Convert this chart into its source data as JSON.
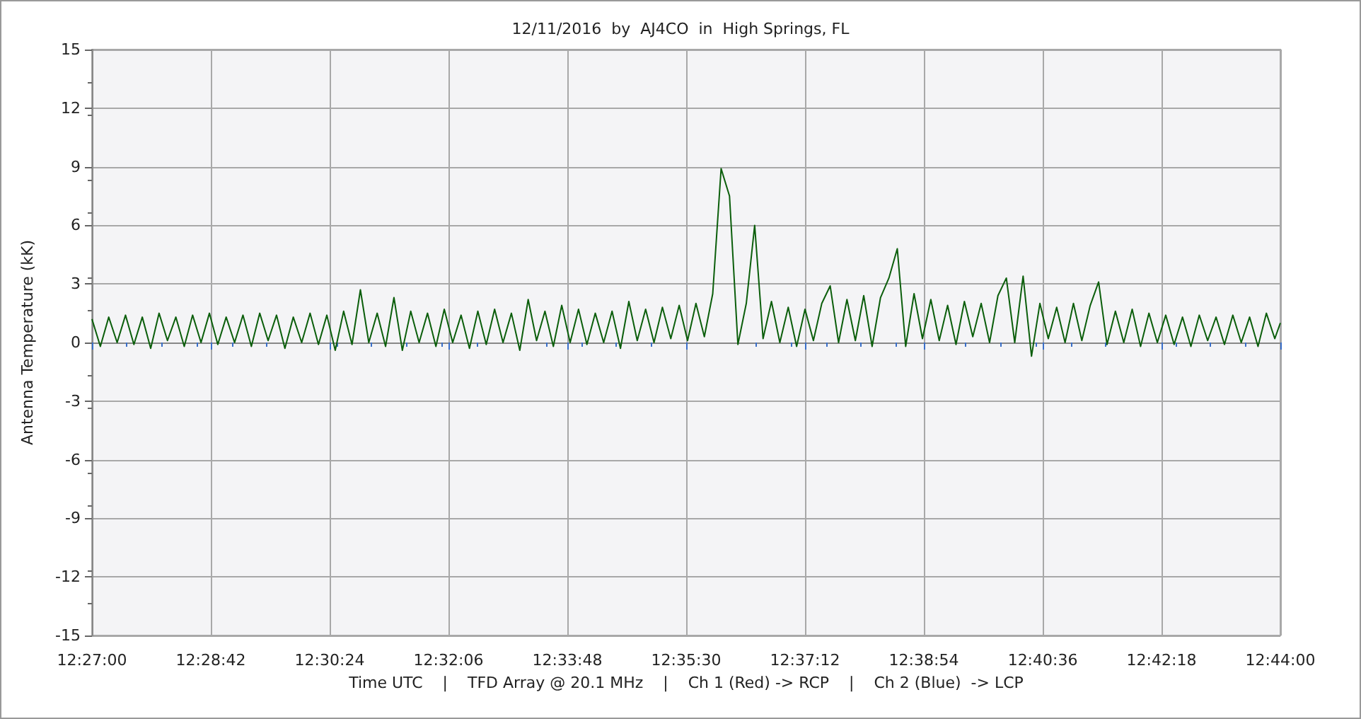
{
  "chart_data": {
    "type": "line",
    "title": "12/11/2016  by  AJ4CO  in  High Springs, FL",
    "xlabel": "Time UTC    |    TFD Array @ 20.1 MHz    |    Ch 1 (Red) -> RCP    |    Ch 2 (Blue)  -> LCP",
    "ylabel": "Antenna Temperature (kK)",
    "xlim": [
      12.45,
      12.73333
    ],
    "xticks": [
      {
        "value": 12.45,
        "label": "12:27:00"
      },
      {
        "value": 12.47833,
        "label": "12:28:42"
      },
      {
        "value": 12.50667,
        "label": "12:30:24"
      },
      {
        "value": 12.535,
        "label": "12:32:06"
      },
      {
        "value": 12.56333,
        "label": "12:33:48"
      },
      {
        "value": 12.59167,
        "label": "12:35:30"
      },
      {
        "value": 12.62,
        "label": "12:37:12"
      },
      {
        "value": 12.64833,
        "label": "12:38:54"
      },
      {
        "value": 12.67667,
        "label": "12:40:36"
      },
      {
        "value": 12.705,
        "label": "12:42:18"
      },
      {
        "value": 12.73333,
        "label": "12:44:00"
      }
    ],
    "ylim": [
      -15,
      15
    ],
    "yticks": [
      -15,
      -12,
      -9,
      -6,
      -3,
      0,
      3,
      6,
      9,
      12,
      15
    ],
    "grid": true,
    "marker": "none",
    "line_style": "solid",
    "series": [
      {
        "color": "#0b5e0b",
        "values": [
          1.2,
          -0.2,
          1.3,
          0.0,
          1.4,
          -0.1,
          1.3,
          -0.3,
          1.5,
          0.1,
          1.3,
          -0.2,
          1.4,
          0.0,
          1.5,
          -0.1,
          1.3,
          0.0,
          1.4,
          -0.2,
          1.5,
          0.1,
          1.4,
          -0.3,
          1.3,
          0.0,
          1.5,
          -0.1,
          1.4,
          -0.4,
          1.6,
          -0.1,
          2.7,
          0.0,
          1.5,
          -0.2,
          2.3,
          -0.4,
          1.6,
          0.0,
          1.5,
          -0.2,
          1.7,
          0.0,
          1.4,
          -0.3,
          1.6,
          -0.1,
          1.7,
          0.0,
          1.5,
          -0.4,
          2.2,
          0.1,
          1.6,
          -0.2,
          1.9,
          0.0,
          1.7,
          -0.1,
          1.5,
          0.0,
          1.6,
          -0.3,
          2.1,
          0.1,
          1.7,
          0.0,
          1.8,
          0.2,
          1.9,
          0.1,
          2.0,
          0.3,
          2.5,
          8.9,
          7.5,
          -0.1,
          2.0,
          6.0,
          0.2,
          2.1,
          0.0,
          1.8,
          -0.2,
          1.7,
          0.1,
          2.0,
          2.9,
          0.0,
          2.2,
          0.1,
          2.4,
          -0.2,
          2.3,
          3.3,
          4.8,
          -0.2,
          2.5,
          0.2,
          2.2,
          0.1,
          1.9,
          -0.1,
          2.1,
          0.3,
          2.0,
          0.0,
          2.4,
          3.3,
          0.0,
          3.4,
          -0.7,
          2.0,
          0.2,
          1.8,
          0.0,
          2.0,
          0.1,
          1.9,
          3.1,
          -0.1,
          1.6,
          0.0,
          1.7,
          -0.2,
          1.5,
          0.0,
          1.4,
          -0.1,
          1.3,
          -0.2,
          1.4,
          0.1,
          1.3,
          -0.1,
          1.4,
          0.0,
          1.3,
          -0.2,
          1.5,
          0.2,
          1.0
        ],
        "x": [
          12.45,
          12.452,
          12.454,
          12.456,
          12.458,
          12.46,
          12.462,
          12.464,
          12.466,
          12.468,
          12.47,
          12.472,
          12.474,
          12.476,
          12.478,
          12.48,
          12.482,
          12.484,
          12.486,
          12.488,
          12.49,
          12.492,
          12.494,
          12.496,
          12.498,
          12.5,
          12.502,
          12.504,
          12.506,
          12.508,
          12.51,
          12.512,
          12.514,
          12.516,
          12.518,
          12.52,
          12.522,
          12.524,
          12.526,
          12.528,
          12.53,
          12.532,
          12.534,
          12.536,
          12.538,
          12.54,
          12.542,
          12.544,
          12.546,
          12.548,
          12.55,
          12.552,
          12.554,
          12.556,
          12.558,
          12.56,
          12.562,
          12.564,
          12.566,
          12.568,
          12.57,
          12.572,
          12.574,
          12.576,
          12.578,
          12.58,
          12.582,
          12.584,
          12.586,
          12.588,
          12.59,
          12.592,
          12.594,
          12.596,
          12.598,
          12.6,
          12.602,
          12.604,
          12.606,
          12.608,
          12.61,
          12.612,
          12.614,
          12.616,
          12.618,
          12.62,
          12.622,
          12.624,
          12.626,
          12.628,
          12.63,
          12.632,
          12.634,
          12.636,
          12.638,
          12.64,
          12.642,
          12.644,
          12.646,
          12.648,
          12.65,
          12.652,
          12.654,
          12.656,
          12.658,
          12.66,
          12.662,
          12.664,
          12.666,
          12.668,
          12.67,
          12.672,
          12.674,
          12.676,
          12.678,
          12.68,
          12.682,
          12.684,
          12.686,
          12.688,
          12.69,
          12.692,
          12.694,
          12.696,
          12.698,
          12.7,
          12.702,
          12.704,
          12.706,
          12.708,
          12.71,
          12.712,
          12.714,
          12.716,
          12.718,
          12.72,
          12.722,
          12.724,
          12.726,
          12.728,
          12.73,
          12.732,
          12.73333
        ]
      }
    ]
  }
}
